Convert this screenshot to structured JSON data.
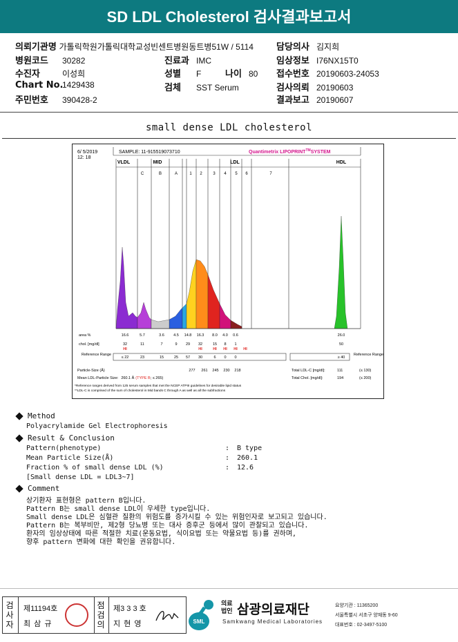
{
  "header": {
    "title": "SD LDL Cholesterol 검사결과보고서"
  },
  "info": {
    "institution_label": "의뢰기관명",
    "institution_value": "가톨릭학원가톨릭대학교성빈센트병원",
    "hosp_code_label": "병원코드",
    "hosp_code_value": "30282",
    "patient_label": "수진자",
    "patient_value": "이성희",
    "chart_label": "Chart No.",
    "chart_value": "1429438",
    "resident_label": "주민번호",
    "resident_value": "390428-2",
    "ward_value": "동트병51W / 5114",
    "dept_label": "진료과",
    "dept_value": "IMC",
    "sex_label": "성별",
    "sex_value": "F",
    "age_label": "나이",
    "age_value": "80",
    "specimen_label": "검체",
    "specimen_value": "SST Serum",
    "doctor_label": "담당의사",
    "doctor_value": "김지희",
    "clinical_label": "임상정보",
    "clinical_value": "I76NX15T0",
    "receipt_label": "접수번호",
    "receipt_value": "20190603-24053",
    "request_label": "검사의뢰",
    "request_value": "20190603",
    "report_label": "결과보고",
    "report_value": "20190607"
  },
  "report_title": "small dense LDL cholesterol",
  "chart_data": {
    "type": "area",
    "date": "6/ 5/2019",
    "time": "12: 18",
    "sample": "SAMPLE:  11-915519073710",
    "system": "Quantimetrix LIPOPRINT",
    "system_tm": "TM",
    "system_suffix": "SYSTEM",
    "groups": [
      "VLDL",
      "MID",
      "LDL",
      "HDL"
    ],
    "bands": [
      "C",
      "B",
      "A",
      "1",
      "2",
      "3",
      "4",
      "5",
      "6",
      "7"
    ],
    "area_label": "area %",
    "area_values": [
      "16.6",
      "5.7",
      "3.6",
      "4.5",
      "14.8",
      "16.3",
      "8.0",
      "4.0",
      "0.6",
      "26.0"
    ],
    "chol_label": "chol. [mg/dl]",
    "chol_values": [
      "32",
      "11",
      "7",
      "9",
      "29",
      "32",
      "15",
      "8",
      "1",
      "50"
    ],
    "hi_flags": [
      "HI",
      "HI",
      "HI",
      "HI",
      "HI",
      "HI"
    ],
    "ref_label": "Reference Range",
    "ref_values": [
      "≤ 22",
      "23",
      "15",
      "25",
      "57",
      "30",
      "6",
      "0",
      "0",
      "≥ 40"
    ],
    "ref_label_right": "Reference Range",
    "particle_label": "Particle-Size (Å)",
    "particle_values": [
      "277",
      "261",
      "245",
      "230",
      "218"
    ],
    "total_ldl_label": "Total LDL-C [mg/dl]:",
    "total_ldl_value": "111",
    "total_ldl_ref": "(≤ 130)",
    "mean_label": "Mean LDL-Particle Size:",
    "mean_value": "260.1 Å",
    "mean_type": "(TYPE B",
    "mean_ref": "; ≤ 265)",
    "total_chol_label": "Total Chol. [mg/dl]:",
    "total_chol_value": "194",
    "total_chol_ref": "(≤ 200)",
    "footnote1": "*Reference ranges derived from 125 serum samples that met the NCEP ATPIII guidelines for desirable lipid status",
    "footnote2": "**LDL-C is comprised of the sum of cholesterol in Mid bands C through A as well as all the subfractions",
    "colors": [
      "#8b2bd1",
      "#b63fd8",
      "#2a5fe0",
      "#2aa7e0",
      "#ffd21f",
      "#ff8c1a",
      "#e0241f",
      "#d1127a",
      "#8a1f1f",
      "#28c22a"
    ]
  },
  "method": {
    "heading": "Method",
    "text": "Polyacrylamide Gel Electrophoresis"
  },
  "result": {
    "heading": "Result & Conclusion",
    "rows": [
      {
        "label": "Pattern(phenotype)",
        "colon": ":",
        "value": "B type"
      },
      {
        "label": "Mean Particle Size(Å)",
        "colon": ":",
        "value": "260.1"
      },
      {
        "label": "Fraction % of small dense LDL (%)",
        "colon": ":",
        "value": "12.6"
      }
    ],
    "note": "[Small dense LDL = LDL3~7]"
  },
  "comment": {
    "heading": "Comment",
    "lines": [
      "상기환자 표현형은 pattern B입니다.",
      "Pattern B는 small dense LDL이 우세한 type입니다.",
      "Small dense LDL은 심혈관 질환의 위험도를 증가시킬 수 있는 위험인자로 보고되고 있습니다.",
      "Pattern B는 복부비만, 제2형 당뇨병 또는 대사 증후군 등에서 많이 관찰되고 있습니다.",
      "환자의 임상상태에 따른 적절한 치료(운동요법, 식이요법 또는 약물요법 등)를 권하며,",
      "향후 pattern 변화에 대한 확인을 권유합니다."
    ]
  },
  "footer": {
    "tester_label": "검사자",
    "tester_no": "제11194호",
    "tester_name": "최 삼 규",
    "reviewer_label": "점검의",
    "reviewer_no": "제3 3 3 호",
    "reviewer_name": "지 현 영",
    "org_badge": "SML",
    "org_prefix_1": "의료",
    "org_prefix_2": "법인",
    "org_name": "삼광의료재단",
    "org_en": "Samkwang Medical Laboratories",
    "org_code": "요양기관 : 11365200",
    "org_address": "서울특별시 서초구 양재동 9-60",
    "org_phone": "대표번호 : 02-3497-5100"
  }
}
